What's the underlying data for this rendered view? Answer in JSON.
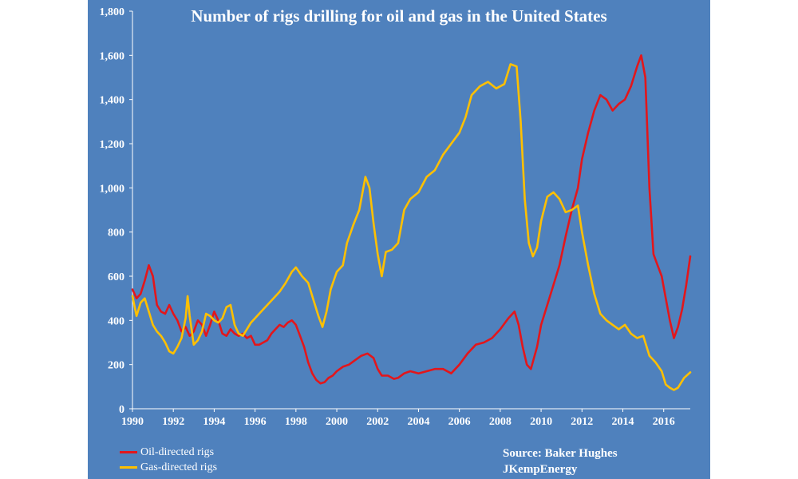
{
  "chart_data": {
    "type": "line",
    "title": "Number of  rigs drilling for oil and gas in the United States",
    "xlabel": "",
    "ylabel": "",
    "xlim": [
      1990,
      2017.3
    ],
    "ylim": [
      0,
      1800
    ],
    "x_ticks": [
      "1990",
      "1992",
      "1994",
      "1996",
      "1998",
      "2000",
      "2002",
      "2004",
      "2006",
      "2008",
      "2010",
      "2012",
      "2014",
      "2016"
    ],
    "y_ticks": [
      "0",
      "200",
      "400",
      "600",
      "800",
      "1,000",
      "1,200",
      "1,400",
      "1,600",
      "1,800"
    ],
    "grid": false,
    "legend_position": "bottom-left",
    "series": [
      {
        "name": "Oil-directed rigs",
        "color": "#e3161b",
        "points": [
          [
            1990.0,
            540
          ],
          [
            1990.2,
            500
          ],
          [
            1990.4,
            520
          ],
          [
            1990.6,
            580
          ],
          [
            1990.8,
            650
          ],
          [
            1991.0,
            600
          ],
          [
            1991.2,
            470
          ],
          [
            1991.4,
            440
          ],
          [
            1991.6,
            430
          ],
          [
            1991.8,
            470
          ],
          [
            1992.0,
            430
          ],
          [
            1992.2,
            400
          ],
          [
            1992.4,
            350
          ],
          [
            1992.6,
            370
          ],
          [
            1992.8,
            330
          ],
          [
            1993.0,
            350
          ],
          [
            1993.2,
            400
          ],
          [
            1993.4,
            380
          ],
          [
            1993.6,
            330
          ],
          [
            1993.8,
            380
          ],
          [
            1994.0,
            440
          ],
          [
            1994.2,
            400
          ],
          [
            1994.4,
            340
          ],
          [
            1994.6,
            330
          ],
          [
            1994.8,
            360
          ],
          [
            1995.0,
            340
          ],
          [
            1995.2,
            330
          ],
          [
            1995.4,
            340
          ],
          [
            1995.6,
            320
          ],
          [
            1995.8,
            330
          ],
          [
            1996.0,
            290
          ],
          [
            1996.2,
            290
          ],
          [
            1996.4,
            300
          ],
          [
            1996.6,
            310
          ],
          [
            1996.8,
            340
          ],
          [
            1997.0,
            360
          ],
          [
            1997.2,
            380
          ],
          [
            1997.4,
            370
          ],
          [
            1997.6,
            390
          ],
          [
            1997.8,
            400
          ],
          [
            1998.0,
            380
          ],
          [
            1998.2,
            330
          ],
          [
            1998.4,
            280
          ],
          [
            1998.6,
            210
          ],
          [
            1998.8,
            160
          ],
          [
            1999.0,
            130
          ],
          [
            1999.2,
            115
          ],
          [
            1999.4,
            120
          ],
          [
            1999.6,
            140
          ],
          [
            1999.8,
            150
          ],
          [
            2000.0,
            170
          ],
          [
            2000.3,
            190
          ],
          [
            2000.6,
            200
          ],
          [
            2000.9,
            220
          ],
          [
            2001.2,
            240
          ],
          [
            2001.5,
            250
          ],
          [
            2001.8,
            230
          ],
          [
            2002.0,
            180
          ],
          [
            2002.2,
            150
          ],
          [
            2002.5,
            150
          ],
          [
            2002.8,
            135
          ],
          [
            2003.0,
            140
          ],
          [
            2003.3,
            160
          ],
          [
            2003.6,
            170
          ],
          [
            2004.0,
            160
          ],
          [
            2004.4,
            170
          ],
          [
            2004.8,
            180
          ],
          [
            2005.2,
            180
          ],
          [
            2005.6,
            160
          ],
          [
            2006.0,
            200
          ],
          [
            2006.4,
            250
          ],
          [
            2006.8,
            290
          ],
          [
            2007.2,
            300
          ],
          [
            2007.6,
            320
          ],
          [
            2008.0,
            360
          ],
          [
            2008.4,
            410
          ],
          [
            2008.7,
            440
          ],
          [
            2008.9,
            380
          ],
          [
            2009.1,
            280
          ],
          [
            2009.3,
            200
          ],
          [
            2009.5,
            180
          ],
          [
            2009.8,
            280
          ],
          [
            2010.0,
            380
          ],
          [
            2010.3,
            470
          ],
          [
            2010.6,
            560
          ],
          [
            2010.9,
            650
          ],
          [
            2011.2,
            780
          ],
          [
            2011.5,
            900
          ],
          [
            2011.8,
            1000
          ],
          [
            2012.0,
            1130
          ],
          [
            2012.3,
            1250
          ],
          [
            2012.6,
            1350
          ],
          [
            2012.9,
            1420
          ],
          [
            2013.2,
            1400
          ],
          [
            2013.5,
            1350
          ],
          [
            2013.8,
            1380
          ],
          [
            2014.1,
            1400
          ],
          [
            2014.4,
            1460
          ],
          [
            2014.7,
            1550
          ],
          [
            2014.9,
            1600
          ],
          [
            2015.1,
            1500
          ],
          [
            2015.3,
            1000
          ],
          [
            2015.5,
            700
          ],
          [
            2015.7,
            650
          ],
          [
            2015.9,
            600
          ],
          [
            2016.1,
            500
          ],
          [
            2016.3,
            400
          ],
          [
            2016.5,
            320
          ],
          [
            2016.7,
            370
          ],
          [
            2016.9,
            450
          ],
          [
            2017.1,
            560
          ],
          [
            2017.3,
            690
          ]
        ]
      },
      {
        "name": "Gas-directed rigs",
        "color": "#ffc000",
        "points": [
          [
            1990.0,
            510
          ],
          [
            1990.2,
            420
          ],
          [
            1990.4,
            480
          ],
          [
            1990.6,
            500
          ],
          [
            1990.8,
            440
          ],
          [
            1991.0,
            380
          ],
          [
            1991.2,
            350
          ],
          [
            1991.4,
            330
          ],
          [
            1991.6,
            300
          ],
          [
            1991.8,
            260
          ],
          [
            1992.0,
            250
          ],
          [
            1992.2,
            280
          ],
          [
            1992.4,
            320
          ],
          [
            1992.6,
            410
          ],
          [
            1992.7,
            510
          ],
          [
            1992.8,
            420
          ],
          [
            1993.0,
            290
          ],
          [
            1993.2,
            310
          ],
          [
            1993.4,
            350
          ],
          [
            1993.6,
            430
          ],
          [
            1993.8,
            420
          ],
          [
            1994.0,
            400
          ],
          [
            1994.2,
            390
          ],
          [
            1994.4,
            410
          ],
          [
            1994.6,
            460
          ],
          [
            1994.8,
            470
          ],
          [
            1995.0,
            380
          ],
          [
            1995.2,
            340
          ],
          [
            1995.4,
            330
          ],
          [
            1995.6,
            360
          ],
          [
            1995.8,
            390
          ],
          [
            1996.0,
            410
          ],
          [
            1996.3,
            440
          ],
          [
            1996.6,
            470
          ],
          [
            1996.9,
            500
          ],
          [
            1997.2,
            530
          ],
          [
            1997.5,
            570
          ],
          [
            1997.8,
            620
          ],
          [
            1998.0,
            640
          ],
          [
            1998.3,
            600
          ],
          [
            1998.6,
            570
          ],
          [
            1998.9,
            480
          ],
          [
            1999.1,
            420
          ],
          [
            1999.3,
            370
          ],
          [
            1999.5,
            440
          ],
          [
            1999.7,
            540
          ],
          [
            2000.0,
            620
          ],
          [
            2000.3,
            650
          ],
          [
            2000.5,
            750
          ],
          [
            2000.8,
            830
          ],
          [
            2001.1,
            900
          ],
          [
            2001.4,
            1050
          ],
          [
            2001.6,
            1000
          ],
          [
            2001.8,
            840
          ],
          [
            2002.0,
            700
          ],
          [
            2002.2,
            600
          ],
          [
            2002.4,
            710
          ],
          [
            2002.7,
            720
          ],
          [
            2003.0,
            750
          ],
          [
            2003.3,
            900
          ],
          [
            2003.6,
            950
          ],
          [
            2004.0,
            980
          ],
          [
            2004.4,
            1050
          ],
          [
            2004.8,
            1080
          ],
          [
            2005.2,
            1150
          ],
          [
            2005.6,
            1200
          ],
          [
            2006.0,
            1250
          ],
          [
            2006.3,
            1320
          ],
          [
            2006.6,
            1420
          ],
          [
            2007.0,
            1460
          ],
          [
            2007.4,
            1480
          ],
          [
            2007.8,
            1450
          ],
          [
            2008.2,
            1470
          ],
          [
            2008.5,
            1560
          ],
          [
            2008.8,
            1550
          ],
          [
            2009.0,
            1300
          ],
          [
            2009.2,
            950
          ],
          [
            2009.4,
            750
          ],
          [
            2009.6,
            690
          ],
          [
            2009.8,
            730
          ],
          [
            2010.0,
            850
          ],
          [
            2010.3,
            960
          ],
          [
            2010.6,
            980
          ],
          [
            2010.9,
            950
          ],
          [
            2011.2,
            890
          ],
          [
            2011.5,
            900
          ],
          [
            2011.8,
            920
          ],
          [
            2012.0,
            800
          ],
          [
            2012.3,
            650
          ],
          [
            2012.6,
            520
          ],
          [
            2012.9,
            430
          ],
          [
            2013.2,
            400
          ],
          [
            2013.5,
            380
          ],
          [
            2013.8,
            360
          ],
          [
            2014.1,
            380
          ],
          [
            2014.4,
            340
          ],
          [
            2014.7,
            320
          ],
          [
            2015.0,
            330
          ],
          [
            2015.3,
            240
          ],
          [
            2015.6,
            210
          ],
          [
            2015.9,
            170
          ],
          [
            2016.1,
            110
          ],
          [
            2016.3,
            95
          ],
          [
            2016.5,
            85
          ],
          [
            2016.7,
            95
          ],
          [
            2017.0,
            140
          ],
          [
            2017.3,
            165
          ]
        ]
      }
    ]
  },
  "source": {
    "line1": "Source: Baker Hughes",
    "line2": "JKempEnergy"
  }
}
